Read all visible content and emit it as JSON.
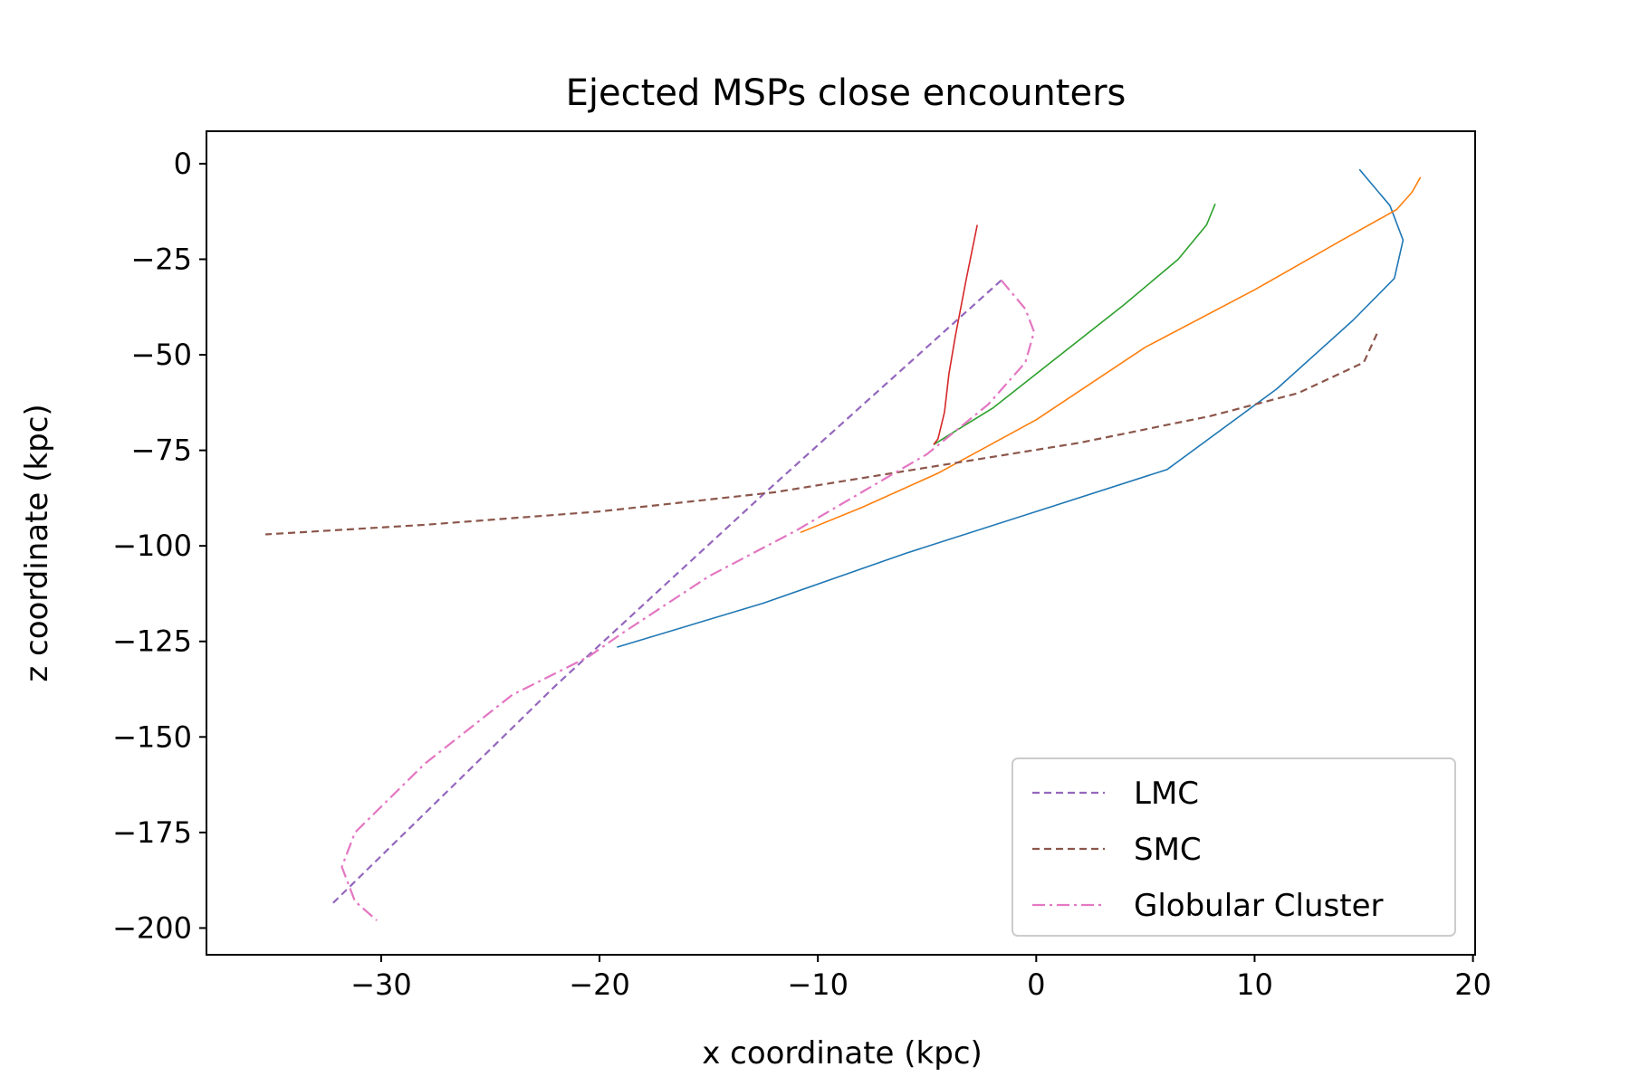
{
  "chart_data": {
    "type": "line",
    "title": "Ejected MSPs close encounters",
    "xlabel": "x coordinate (kpc)",
    "ylabel": "z coordinate (kpc)",
    "xlim": [
      -38,
      20.1
    ],
    "ylim": [
      -207,
      8.5
    ],
    "xticks": [
      -30,
      -20,
      -10,
      0,
      10,
      20
    ],
    "yticks": [
      0,
      -25,
      -50,
      -75,
      -100,
      -125,
      -150,
      -175,
      -200
    ],
    "grid": false,
    "legend_position": "lower-right",
    "series": [
      {
        "name": "",
        "color": "#1f77b4",
        "style": "solid",
        "x": [
          14.8,
          16.2,
          16.8,
          16.4,
          14.5,
          11.0,
          6.0,
          0.0,
          -6.0,
          -12.5,
          -19.2
        ],
        "z": [
          -1.5,
          -11,
          -20,
          -30,
          -41,
          -59,
          -80,
          -91,
          -102,
          -115,
          -126.5
        ]
      },
      {
        "name": "",
        "color": "#ff7f0e",
        "style": "solid",
        "x": [
          17.6,
          17.2,
          16.5,
          14.0,
          10.0,
          5.0,
          0.0,
          -4.5,
          -8.0,
          -10.8
        ],
        "z": [
          -3.5,
          -7.5,
          -12,
          -20,
          -33,
          -48,
          -67,
          -81,
          -90,
          -96.5
        ]
      },
      {
        "name": "",
        "color": "#2ca02c",
        "style": "solid",
        "x": [
          8.2,
          7.8,
          6.5,
          4.0,
          0.0,
          -2.0,
          -4.0,
          -4.7
        ],
        "z": [
          -10.5,
          -16,
          -25,
          -37,
          -55,
          -64,
          -71,
          -73.5
        ]
      },
      {
        "name": "",
        "color": "#d62728",
        "style": "solid",
        "x": [
          -2.7,
          -3.2,
          -3.7,
          -4.0,
          -4.2,
          -4.5,
          -4.7
        ],
        "z": [
          -16,
          -30,
          -45,
          -55,
          -65,
          -72,
          -73.5
        ]
      },
      {
        "name": "LMC",
        "color": "#9467bd",
        "style": "dashed",
        "x": [
          -1.6,
          -12.4,
          -22.0,
          -32.3
        ],
        "z": [
          -30.5,
          -86.0,
          -136.5,
          -194.0
        ]
      },
      {
        "name": "SMC",
        "color": "#8c564b",
        "style": "dashed",
        "x": [
          15.6,
          15.0,
          12.0,
          8.0,
          2.0,
          -5.0,
          -12.0,
          -20.0,
          -28.0,
          -35.3
        ],
        "z": [
          -44.5,
          -52,
          -60,
          -66,
          -73,
          -79.5,
          -86,
          -91,
          -94.5,
          -97
        ]
      },
      {
        "name": "Globular Cluster",
        "color": "#e377c2",
        "style": "dashdot",
        "x": [
          -1.6,
          -0.5,
          -0.1,
          -0.5,
          -2.2,
          -5.0,
          -8.0,
          -11.0,
          -15.0,
          -19.0,
          -20.5,
          -24.0,
          -28.0,
          -31.2,
          -31.8,
          -31.2,
          -30.2
        ],
        "z": [
          -30.5,
          -38,
          -44,
          -52,
          -63,
          -76,
          -86,
          -96,
          -108,
          -123,
          -129,
          -139,
          -157,
          -175,
          -184,
          -193,
          -198
        ]
      }
    ]
  }
}
